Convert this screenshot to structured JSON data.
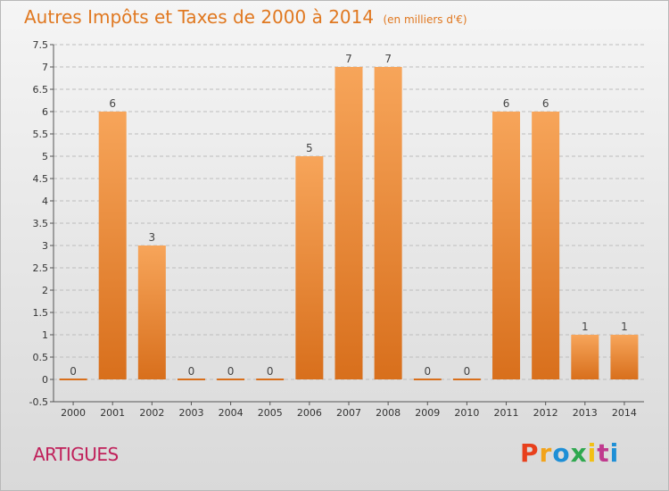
{
  "header": {
    "title": "Autres Impôts et Taxes de 2000 à 2014",
    "unit_note": "(en milliers d'€)"
  },
  "footer": {
    "city": "ARTIGUES",
    "logo_text": "Proxiti",
    "logo_colors": [
      "#e8401c",
      "#f2a31a",
      "#1e8fd6",
      "#2fa84f",
      "#f2c014",
      "#c03a8e",
      "#1e8fd6"
    ]
  },
  "colors": {
    "bar_top": "#f7a55a",
    "bar_bottom": "#d86f1c",
    "title": "#e07820",
    "city": "#c0205a",
    "grid": "#bdbdbd"
  },
  "chart_data": {
    "type": "bar",
    "title": "Autres Impôts et Taxes de 2000 à 2014",
    "categories": [
      "2000",
      "2001",
      "2002",
      "2003",
      "2004",
      "2005",
      "2006",
      "2007",
      "2008",
      "2009",
      "2010",
      "2011",
      "2012",
      "2013",
      "2014"
    ],
    "values": [
      0,
      6,
      3,
      0,
      0,
      0,
      5,
      7,
      7,
      0,
      0,
      6,
      6,
      1,
      1
    ],
    "value_labels": [
      "0",
      "6",
      "3",
      "0",
      "0",
      "0",
      "5",
      "7",
      "7",
      "0",
      "0",
      "6",
      "6",
      "1",
      "1"
    ],
    "y_ticks": [
      "-0.5",
      "0",
      "0.5",
      "1",
      "1.5",
      "2",
      "2.5",
      "3",
      "3.5",
      "4",
      "4.5",
      "5",
      "5.5",
      "6",
      "6.5",
      "7",
      "7.5"
    ],
    "ylim": [
      -0.5,
      7.5
    ],
    "grid": true,
    "legend": "none"
  }
}
